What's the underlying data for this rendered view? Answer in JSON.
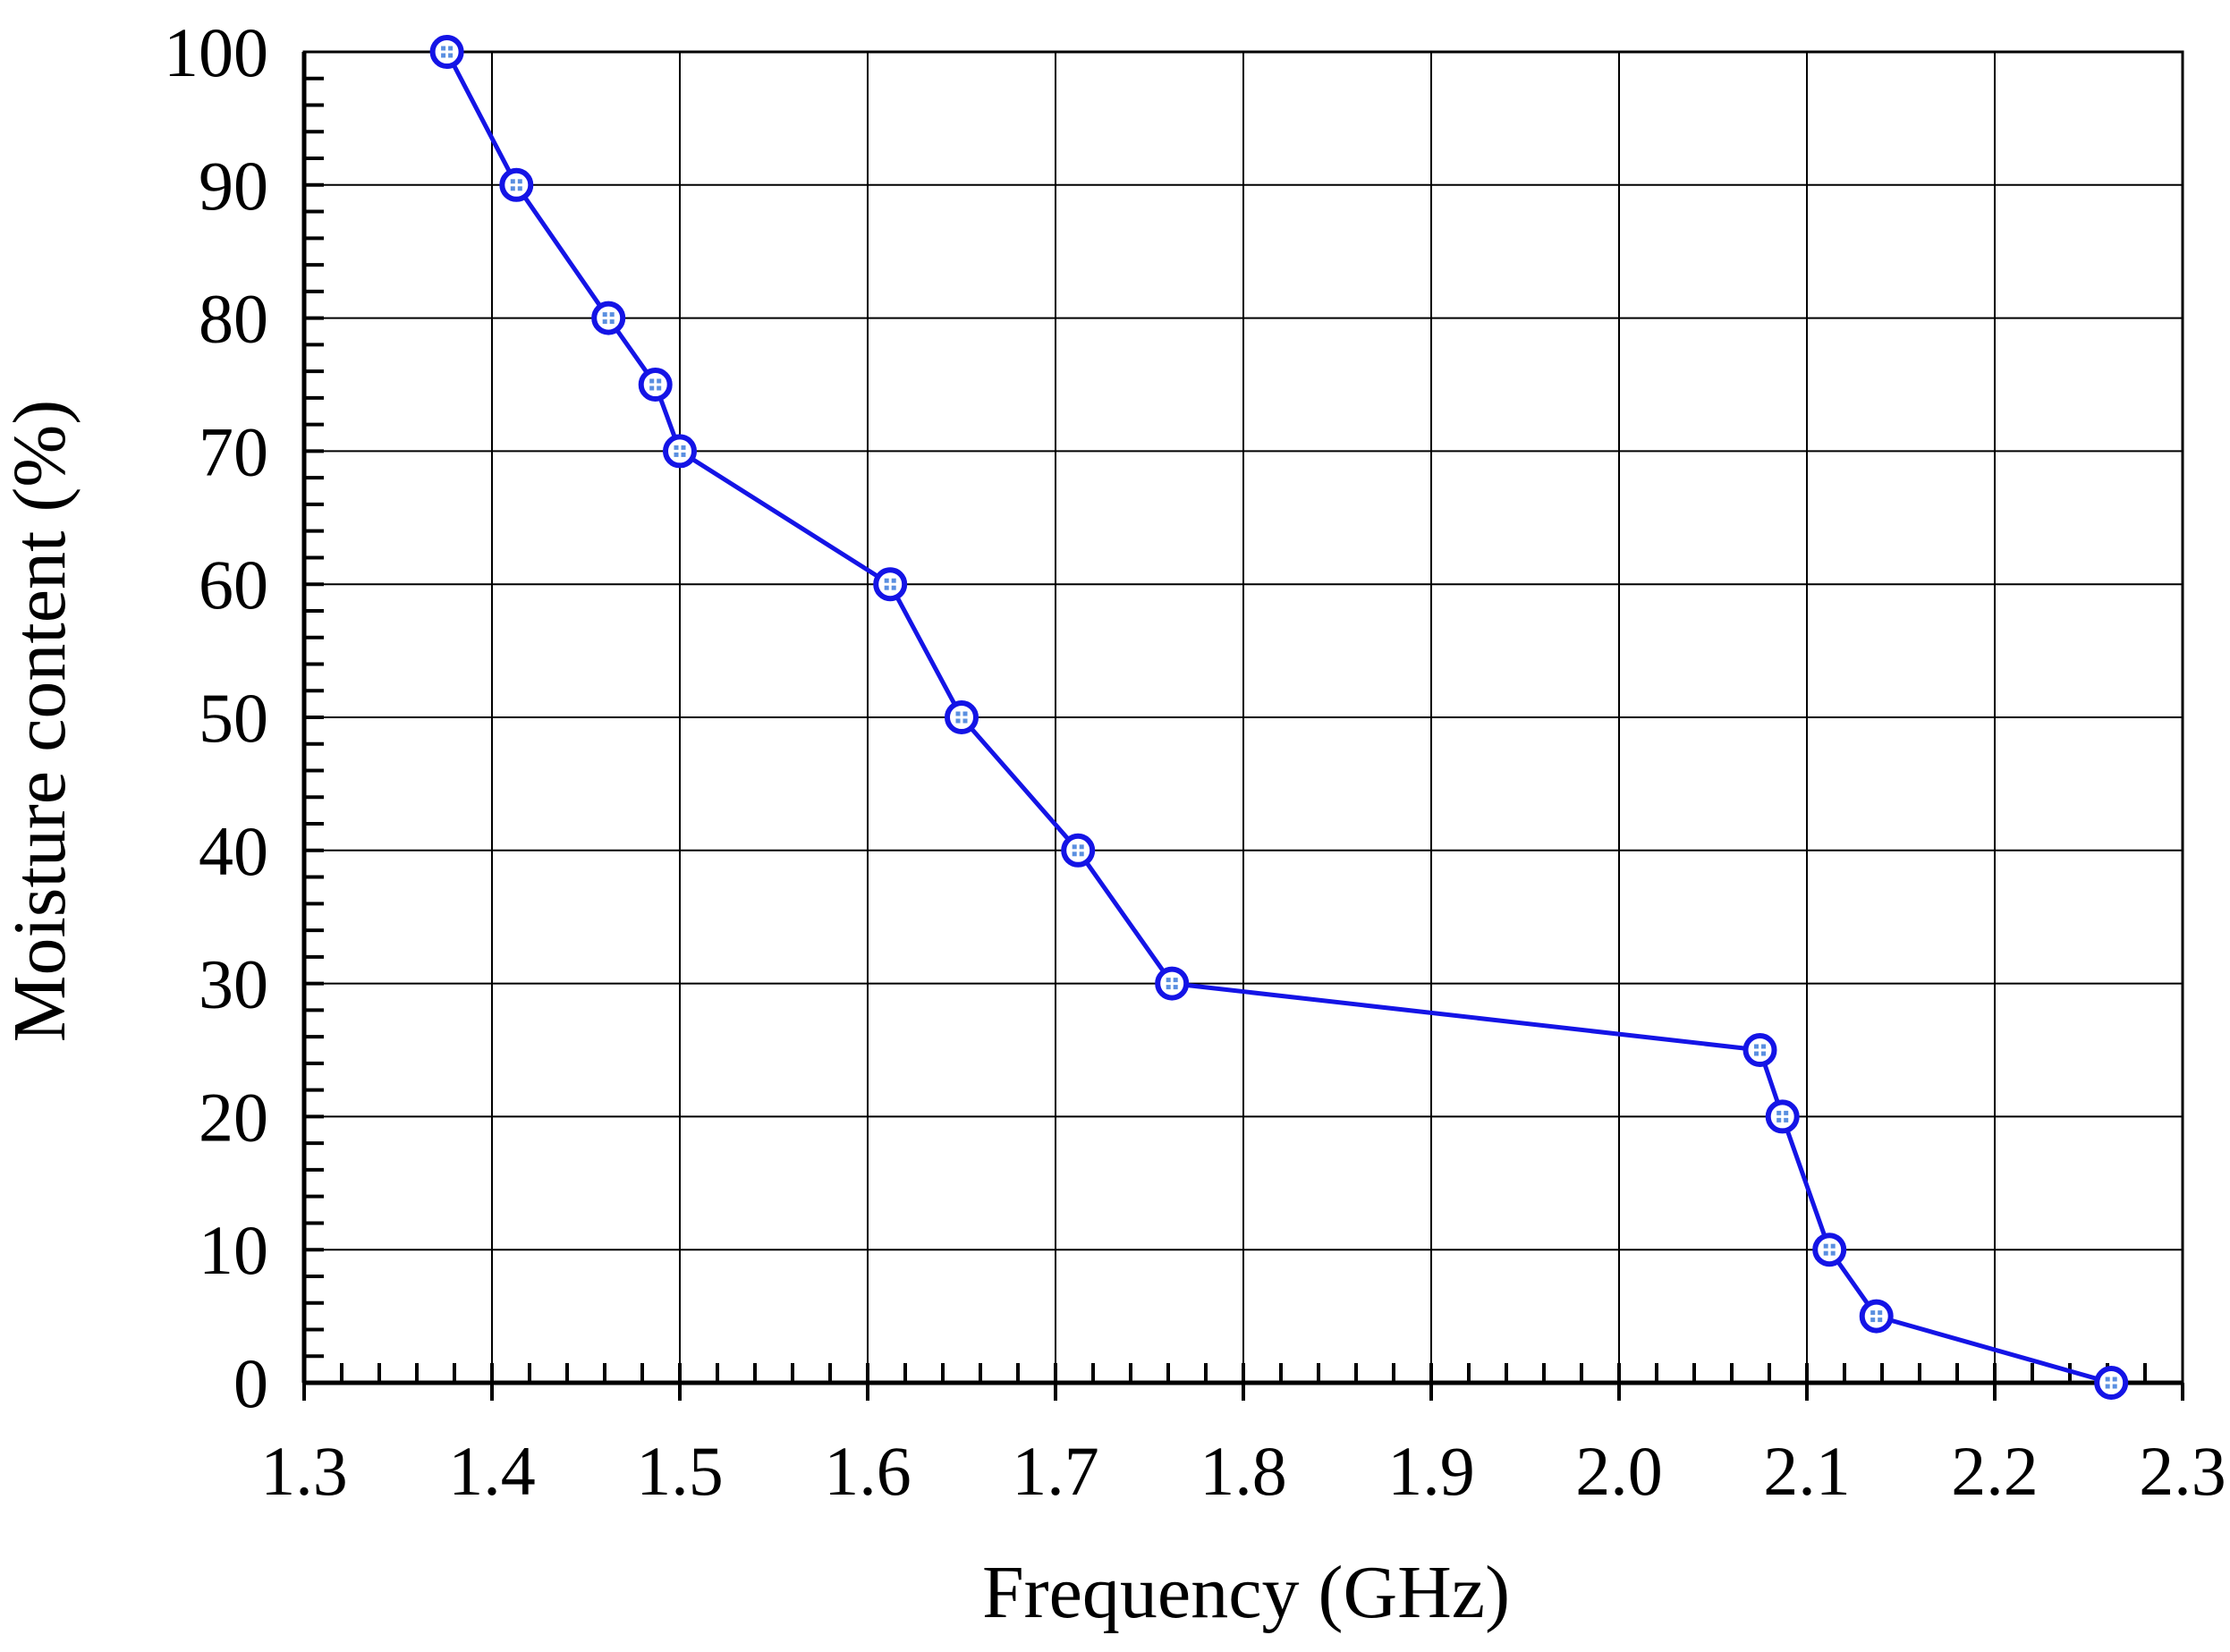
{
  "chart_data": {
    "type": "line",
    "title": "",
    "xlabel": "Frequency (GHz)",
    "ylabel": "Moisture content (%)",
    "xlim": [
      1.3,
      2.3
    ],
    "ylim": [
      0,
      100
    ],
    "x_ticks": [
      "1.3",
      "1.4",
      "1.5",
      "1.6",
      "1.7",
      "1.8",
      "1.9",
      "2.0",
      "2.1",
      "2.2",
      "2.3"
    ],
    "y_ticks": [
      "0",
      "10",
      "20",
      "30",
      "40",
      "50",
      "60",
      "70",
      "80",
      "90",
      "100"
    ],
    "grid": true,
    "legend": "none",
    "series": [
      {
        "color": "#1414e6",
        "marker": "circle",
        "points": [
          {
            "x": 1.376,
            "y": 100
          },
          {
            "x": 1.413,
            "y": 90
          },
          {
            "x": 1.462,
            "y": 80
          },
          {
            "x": 1.487,
            "y": 75
          },
          {
            "x": 1.5,
            "y": 70
          },
          {
            "x": 1.612,
            "y": 60
          },
          {
            "x": 1.65,
            "y": 50
          },
          {
            "x": 1.712,
            "y": 40
          },
          {
            "x": 1.762,
            "y": 30
          },
          {
            "x": 2.075,
            "y": 25
          },
          {
            "x": 2.087,
            "y": 20
          },
          {
            "x": 2.112,
            "y": 10
          },
          {
            "x": 2.137,
            "y": 5
          },
          {
            "x": 2.262,
            "y": 0
          }
        ]
      }
    ]
  }
}
